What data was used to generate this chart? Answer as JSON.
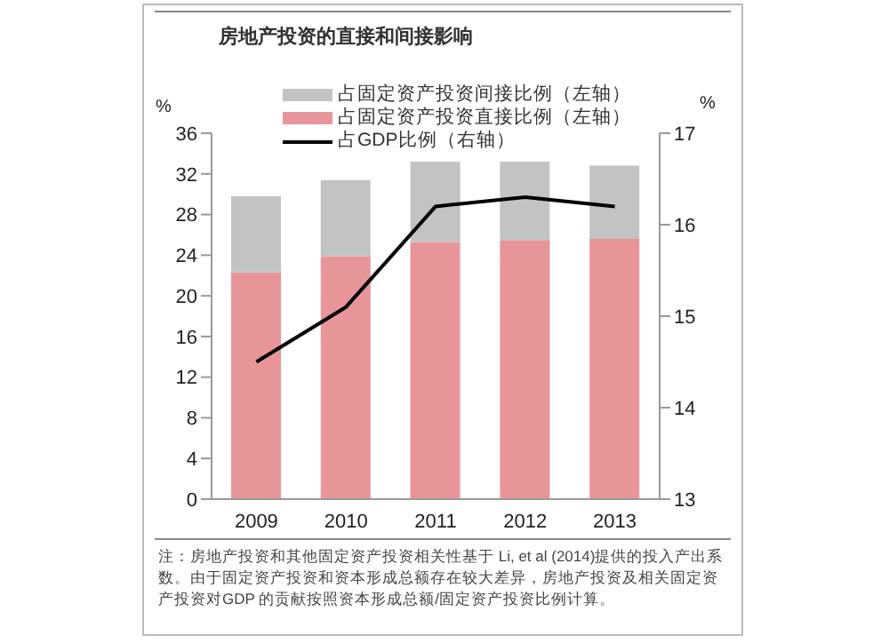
{
  "chart_data": {
    "type": "bar",
    "title": "房地产投资的直接和间接影响",
    "categories": [
      "2009",
      "2010",
      "2011",
      "2012",
      "2013"
    ],
    "stacked": true,
    "ylabel": "%",
    "y2label": "%",
    "ylim": [
      0,
      36
    ],
    "yticks": [
      0,
      4,
      8,
      12,
      16,
      20,
      24,
      28,
      32,
      36
    ],
    "y2lim": [
      13,
      17
    ],
    "y2ticks": [
      13,
      14,
      15,
      16,
      17
    ],
    "legend": "top",
    "series": [
      {
        "name": "占固定资产投资直接比例（左轴）",
        "color": "#e8959a",
        "values": [
          22.3,
          23.9,
          25.3,
          25.5,
          25.6
        ]
      },
      {
        "name": "占固定资产投资间接比例（左轴）",
        "color": "#c3c3c3",
        "values": [
          7.5,
          7.5,
          7.9,
          7.7,
          7.2
        ]
      },
      {
        "name": "占GDP比例（右轴）",
        "type": "line",
        "axis": "y2",
        "color": "#000000",
        "marker": "none",
        "values": [
          14.5,
          15.1,
          16.2,
          16.3,
          16.2
        ]
      }
    ],
    "annotations": [
      "注：房地产投资和其他固定资产投资相关性基于 Li, et al (2014)提供的投入产出系数。由于固定资产投资和资本形成总额存在较大差异，房地产投资及相关固定资产投资对GDP 的贡献按照资本形成总额/固定资产投资比例计算。"
    ]
  }
}
